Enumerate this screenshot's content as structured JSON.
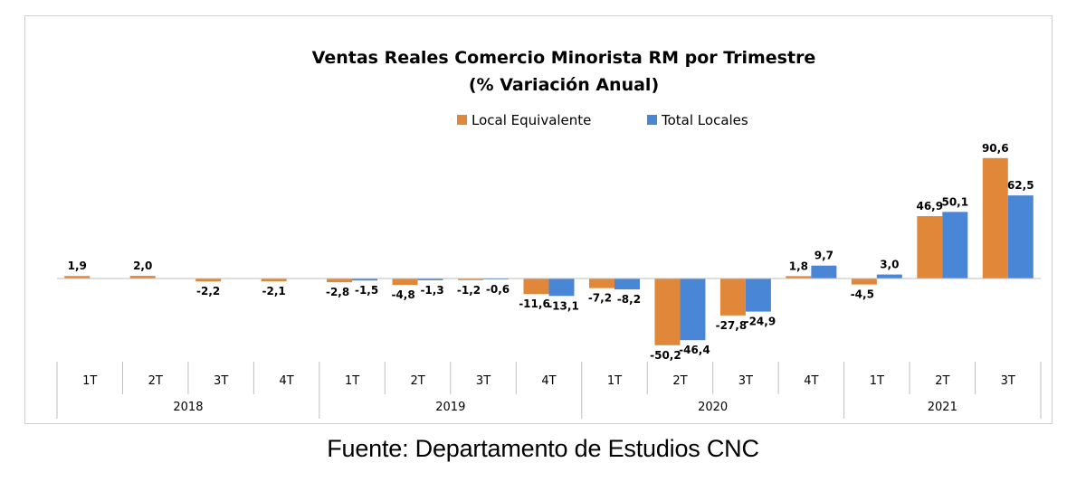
{
  "chart_data": {
    "type": "bar",
    "title": "Ventas Reales Comercio Minorista RM por Trimestre",
    "subtitle": "(% Variación Anual)",
    "categories": [
      "1T",
      "2T",
      "3T",
      "4T",
      "1T",
      "2T",
      "3T",
      "4T",
      "1T",
      "2T",
      "3T",
      "4T",
      "1T",
      "2T",
      "3T"
    ],
    "groups": [
      {
        "label": "2018",
        "span": 4
      },
      {
        "label": "2019",
        "span": 4
      },
      {
        "label": "2020",
        "span": 4
      },
      {
        "label": "2021",
        "span": 3
      }
    ],
    "series": [
      {
        "name": "Local Equivalente",
        "color": "#E0873A",
        "values": [
          1.9,
          2.0,
          -2.2,
          -2.1,
          -2.8,
          -4.8,
          -1.2,
          -11.6,
          -7.2,
          -50.2,
          -27.8,
          1.8,
          -4.5,
          46.9,
          90.6
        ],
        "labels": [
          "1,9",
          "2,0",
          "-2,2",
          "-2,1",
          "-2,8",
          "-4,8",
          "-1,2",
          "-11,6",
          "-7,2",
          "-50,2",
          "-27,8",
          "1,8",
          "-4,5",
          "46,9",
          "90,6"
        ]
      },
      {
        "name": "Total Locales",
        "color": "#4A86D6",
        "values": [
          null,
          null,
          null,
          null,
          -1.5,
          -1.3,
          -0.6,
          -13.1,
          -8.2,
          -46.4,
          -24.9,
          9.7,
          3.0,
          50.1,
          62.5
        ],
        "labels": [
          "",
          "",
          "",
          "",
          "-1,5",
          "-1,3",
          "-0,6",
          "-13,1",
          "-8,2",
          "-46,4",
          "-24,9",
          "9,7",
          "3,0",
          "50,1",
          "62,5"
        ]
      }
    ],
    "ylim": [
      -60,
      100
    ],
    "grid": false,
    "legend_position": "top-center"
  },
  "footer": {
    "source": "Fuente: Departamento de Estudios CNC"
  }
}
